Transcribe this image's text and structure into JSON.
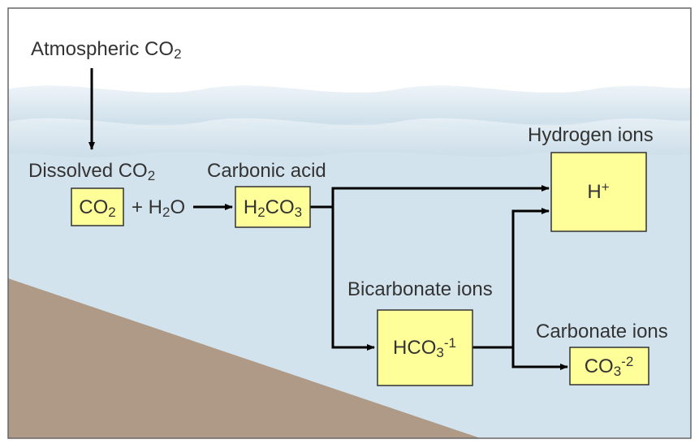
{
  "labels": [
    {
      "runs": [
        {
          "text": "Atmospheric CO"
        },
        {
          "sub": "2"
        }
      ]
    },
    {
      "runs": [
        {
          "text": "Dissolved CO"
        },
        {
          "sub": "2"
        }
      ]
    },
    {
      "runs": [
        {
          "text": "Carbonic acid"
        }
      ]
    },
    {
      "runs": [
        {
          "text": "Hydrogen ions"
        }
      ]
    },
    {
      "runs": [
        {
          "text": "Bicarbonate ions"
        }
      ]
    },
    {
      "runs": [
        {
          "text": "Carbonate ions"
        }
      ]
    },
    {
      "runs": [
        {
          "text": "+ H"
        },
        {
          "sub": "2"
        },
        {
          "text": "O"
        }
      ]
    }
  ],
  "boxes": [
    {
      "runs": [
        {
          "text": "CO"
        },
        {
          "sub": "2"
        }
      ]
    },
    {
      "runs": [
        {
          "text": "H"
        },
        {
          "sub": "2"
        },
        {
          "text": "CO"
        },
        {
          "sub": "3"
        }
      ]
    },
    {
      "runs": [
        {
          "text": "H"
        },
        {
          "sup": "+"
        }
      ]
    },
    {
      "runs": [
        {
          "text": "HCO"
        },
        {
          "sub": "3"
        },
        {
          "sup": "-1"
        }
      ]
    },
    {
      "runs": [
        {
          "text": "CO"
        },
        {
          "sub": "3"
        },
        {
          "sup": "-2"
        }
      ]
    }
  ]
}
